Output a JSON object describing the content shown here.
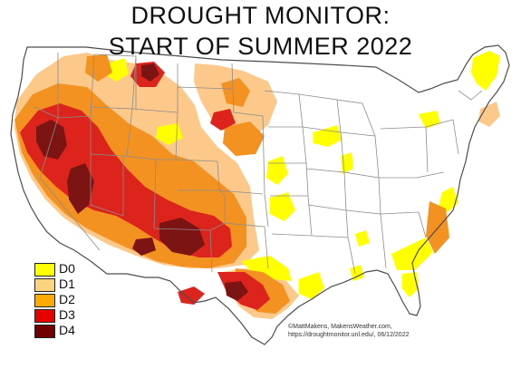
{
  "title": {
    "line1": "DROUGHT MONITOR:",
    "line2": "START OF SUMMER 2022"
  },
  "legend": [
    {
      "label": "D0",
      "color": "#ffff00"
    },
    {
      "label": "D1",
      "color": "#fcd37f"
    },
    {
      "label": "D2",
      "color": "#ffaa00"
    },
    {
      "label": "D3",
      "color": "#e60000"
    },
    {
      "label": "D4",
      "color": "#730000"
    }
  ],
  "credit": {
    "line1": "©MattMakens, MakensWeather.com,",
    "line2": "https://droughtmonitor.unl.edu/, 06/12/2022"
  },
  "map_colors": {
    "land": "#ffffff",
    "border": "#8c8c8c",
    "outline": "#4d4d4d",
    "d0": "#ffff00",
    "d1": "#fcc98a",
    "d2": "#f39221",
    "d3": "#dc241c",
    "d4": "#7d1414"
  }
}
